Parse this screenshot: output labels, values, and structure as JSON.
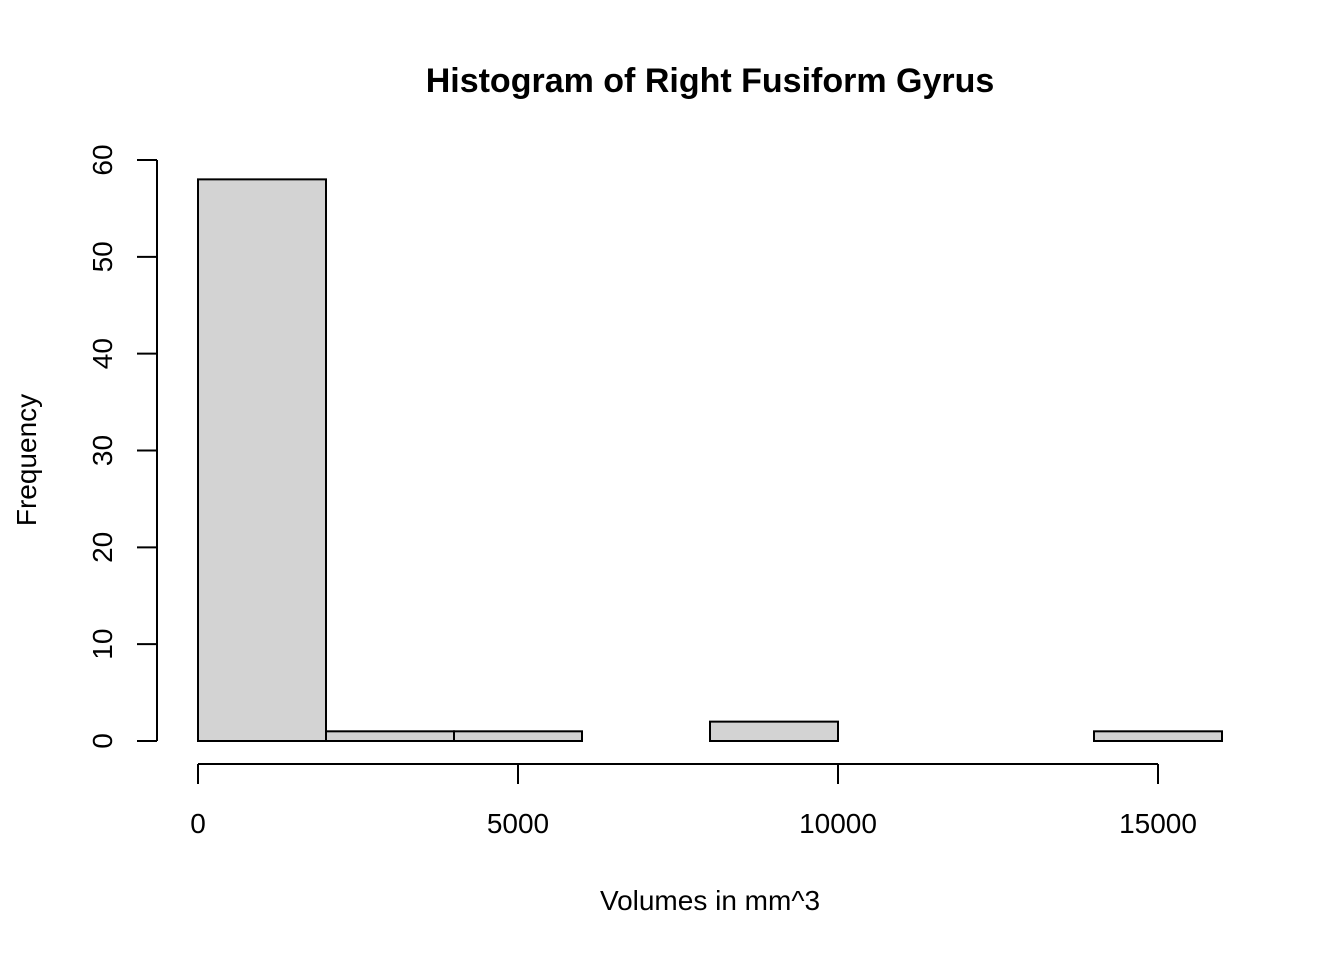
{
  "chart_data": {
    "type": "bar",
    "title": "Histogram of Right Fusiform Gyrus",
    "xlabel": "Volumes in mm^3",
    "ylabel": "Frequency",
    "bins": [
      {
        "x0": 0,
        "x1": 2000,
        "count": 58
      },
      {
        "x0": 2000,
        "x1": 4000,
        "count": 1
      },
      {
        "x0": 4000,
        "x1": 6000,
        "count": 1
      },
      {
        "x0": 6000,
        "x1": 8000,
        "count": 0
      },
      {
        "x0": 8000,
        "x1": 10000,
        "count": 2
      },
      {
        "x0": 10000,
        "x1": 12000,
        "count": 0
      },
      {
        "x0": 12000,
        "x1": 14000,
        "count": 0
      },
      {
        "x0": 14000,
        "x1": 16000,
        "count": 1
      }
    ],
    "xlim": [
      0,
      16000
    ],
    "ylim": [
      0,
      60
    ],
    "xticks": [
      0,
      5000,
      10000,
      15000
    ],
    "yticks": [
      0,
      10,
      20,
      30,
      40,
      50,
      60
    ],
    "grid": false
  }
}
